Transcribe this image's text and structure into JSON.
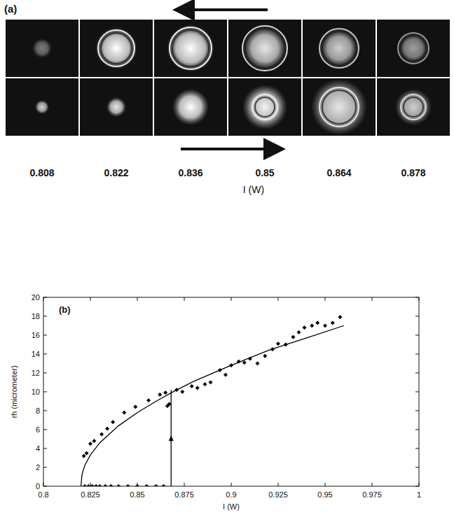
{
  "panel_a": {
    "label": "(a)",
    "intensities": [
      "0.808",
      "0.822",
      "0.836",
      "0.85",
      "0.864",
      "0.878"
    ],
    "axis_label": "I (W)"
  },
  "chart_data": {
    "type": "scatter",
    "panel_label": "(b)",
    "x_label": "I (W)",
    "y_label": "rh (micrometer)",
    "xlim": [
      0.8,
      1
    ],
    "xticks": [
      0.8,
      0.825,
      0.85,
      0.875,
      0.9,
      0.925,
      0.95,
      0.975,
      1
    ],
    "ylim": [
      0,
      20
    ],
    "yticks": [
      0,
      2,
      4,
      6,
      8,
      10,
      12,
      14,
      16,
      18,
      20
    ],
    "grid": false,
    "series": [
      {
        "type": "scatter",
        "marker": "diamond",
        "color": "#000000",
        "x": [
          0.822,
          0.824,
          0.826,
          0.828,
          0.83,
          0.833,
          0.836,
          0.84,
          0.845,
          0.85,
          0.855,
          0.86,
          0.864,
          0.8215,
          0.823,
          0.825,
          0.827,
          0.831,
          0.834,
          0.837,
          0.843,
          0.849,
          0.856,
          0.862,
          0.865,
          0.866,
          0.867,
          0.871,
          0.874,
          0.879,
          0.882,
          0.886,
          0.889,
          0.894,
          0.897,
          0.9,
          0.904,
          0.907,
          0.91,
          0.914,
          0.918,
          0.922,
          0.925,
          0.929,
          0.933,
          0.936,
          0.939,
          0.943,
          0.946,
          0.95,
          0.954,
          0.958
        ],
        "values": [
          0,
          0,
          0,
          0,
          0,
          0,
          0,
          0,
          0,
          0,
          0,
          0,
          0,
          3.2,
          3.5,
          4.5,
          4.8,
          5.5,
          6.1,
          6.8,
          7.8,
          8.4,
          9.1,
          9.7,
          9.9,
          8.5,
          8.7,
          10.2,
          10.0,
          10.6,
          10.4,
          10.8,
          11.0,
          12.3,
          11.8,
          12.8,
          13.2,
          13.1,
          13.5,
          13.0,
          13.8,
          14.5,
          15.1,
          15.0,
          15.8,
          16.3,
          16.8,
          17.0,
          17.3,
          17.0,
          17.3,
          17.9
        ]
      },
      {
        "type": "line",
        "line_style": "solid",
        "color": "#000000",
        "x": [
          0.82,
          0.8205,
          0.822,
          0.825,
          0.83,
          0.84,
          0.85,
          0.86,
          0.87,
          0.88,
          0.9,
          0.92,
          0.94,
          0.96
        ],
        "values": [
          0,
          1.2,
          2.2,
          3.3,
          4.6,
          6.4,
          7.8,
          9.0,
          10.1,
          11.1,
          12.8,
          14.4,
          15.7,
          17.0
        ]
      },
      {
        "type": "line",
        "line_style": "solid",
        "marker": "arrow",
        "color": "#000000",
        "x": [
          0.868,
          0.868
        ],
        "values": [
          0,
          10.2
        ]
      }
    ]
  }
}
